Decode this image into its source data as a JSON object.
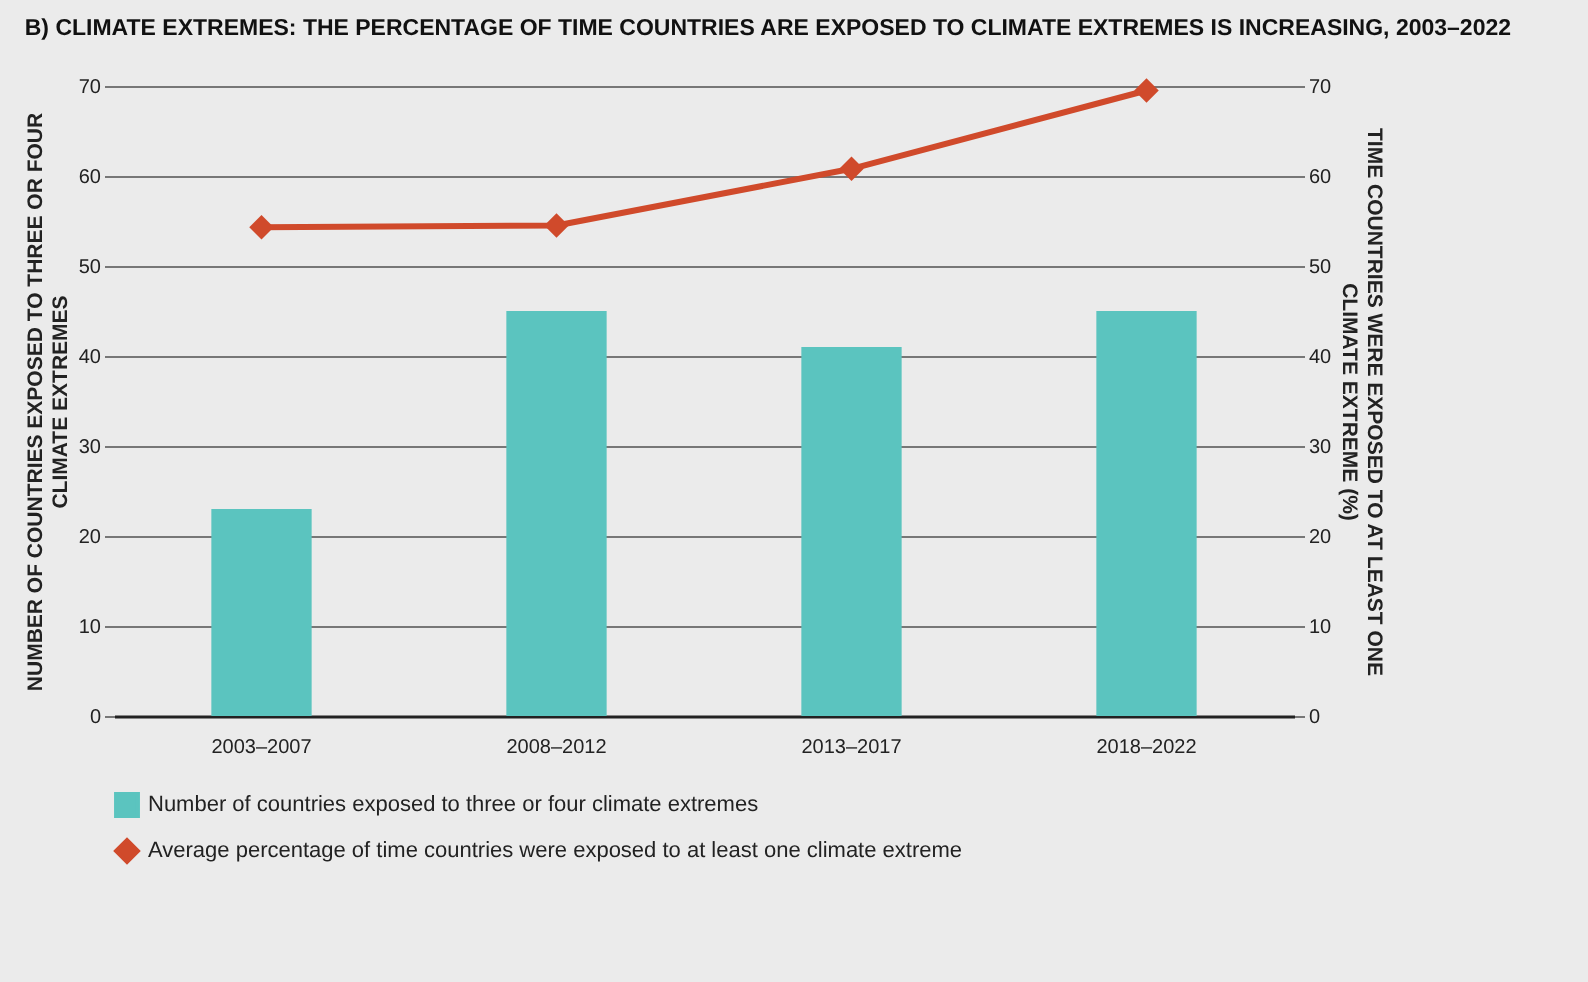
{
  "chart_data": {
    "type": "bar",
    "title": "B) CLIMATE EXTREMES: THE PERCENTAGE OF TIME COUNTRIES ARE EXPOSED TO CLIMATE EXTREMES IS INCREASING, 2003–2022",
    "ylabel": "NUMBER OF COUNTRIES EXPOSED TO THREE OR FOUR CLIMATE EXTREMES",
    "y2label": "TIME COUNTRIES WERE EXPOSED TO AT LEAST ONE CLIMATE EXTREME (%)",
    "categories": [
      "2003–2007",
      "2008–2012",
      "2013–2017",
      "2018–2022"
    ],
    "series": [
      {
        "name": "Number of countries exposed to three or four climate extremes",
        "color": "#5bc4bf",
        "values": [
          23,
          45,
          41,
          45
        ]
      },
      {
        "name": "Average percentage of time countries were exposed to at least one climate extreme",
        "type": "line",
        "axis": "y2",
        "color": "#d04a2b",
        "marker": "diamond",
        "values": [
          54.3,
          54.5,
          60.8,
          69.5
        ]
      }
    ],
    "ylim": [
      0,
      70
    ],
    "yticks": [
      0,
      10,
      20,
      30,
      40,
      50,
      60,
      70
    ],
    "y2lim": [
      0,
      70
    ],
    "y2ticks": [
      0,
      10,
      20,
      30,
      40,
      50,
      60,
      70
    ],
    "grid": true,
    "legend": "bottom"
  }
}
